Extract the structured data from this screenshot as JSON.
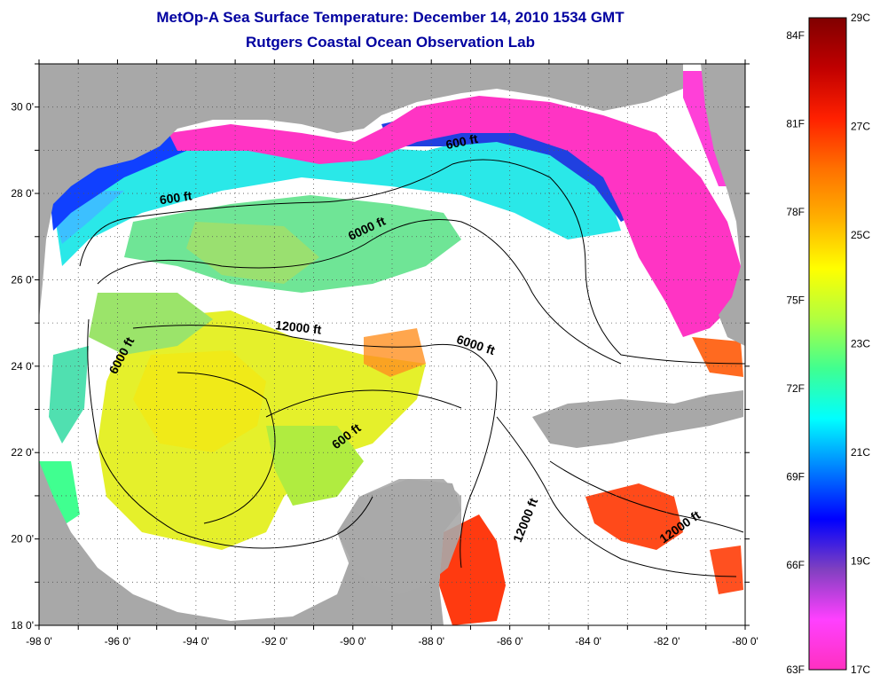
{
  "title": {
    "line1": "MetOp-A Sea Surface Temperature:  December 14, 2010 1534 GMT",
    "line2": "Rutgers Coastal Ocean Observation Lab"
  },
  "axes": {
    "longitude_ticks": [
      "-98 0'",
      "-96 0'",
      "-94 0'",
      "-92 0'",
      "-90 0'",
      "-88 0'",
      "-86 0'",
      "-84 0'",
      "-82 0'",
      "-80 0'"
    ],
    "latitude_ticks": [
      "30 0'",
      "28 0'",
      "26 0'",
      "24 0'",
      "22 0'",
      "20 0'",
      "18 0'"
    ],
    "lon_range": [
      -98,
      -80
    ],
    "lat_range": [
      18,
      31
    ]
  },
  "contours": [
    {
      "label": "600 ft",
      "lon": -94.5,
      "lat": 27.8,
      "angle": -8
    },
    {
      "label": "600 ft",
      "lon": -87.2,
      "lat": 29.1,
      "angle": -12
    },
    {
      "label": "6000 ft",
      "lon": -89.6,
      "lat": 27.1,
      "angle": -25
    },
    {
      "label": "12000 ft",
      "lon": -91.4,
      "lat": 24.8,
      "angle": 6
    },
    {
      "label": "6000 ft",
      "lon": -86.9,
      "lat": 24.4,
      "angle": 18
    },
    {
      "label": "6000 ft",
      "lon": -95.8,
      "lat": 24.2,
      "angle": -62
    },
    {
      "label": "600 ft",
      "lon": -90.1,
      "lat": 22.3,
      "angle": -38
    },
    {
      "label": "12000 ft",
      "lon": -85.5,
      "lat": 20.4,
      "angle": -68
    },
    {
      "label": "12000 ft",
      "lon": -81.6,
      "lat": 20.2,
      "angle": -35
    }
  ],
  "colorbar": {
    "fahrenheit_labels": [
      "84F",
      "81F",
      "78F",
      "75F",
      "72F",
      "69F",
      "66F",
      "63F"
    ],
    "celsius_labels": [
      "29C",
      "27C",
      "25C",
      "23C",
      "21C",
      "19C",
      "17C"
    ],
    "colors": [
      "#800000",
      "#c00000",
      "#ff2000",
      "#ff7000",
      "#ffb000",
      "#ffff00",
      "#b0ff40",
      "#40ff90",
      "#00ffff",
      "#0080ff",
      "#0000ff",
      "#8040c0",
      "#ff40ff",
      "#ff30c0"
    ]
  },
  "colors": {
    "land": "#a8a8a8",
    "no_data": "#ffffff",
    "title": "#0000a0"
  }
}
